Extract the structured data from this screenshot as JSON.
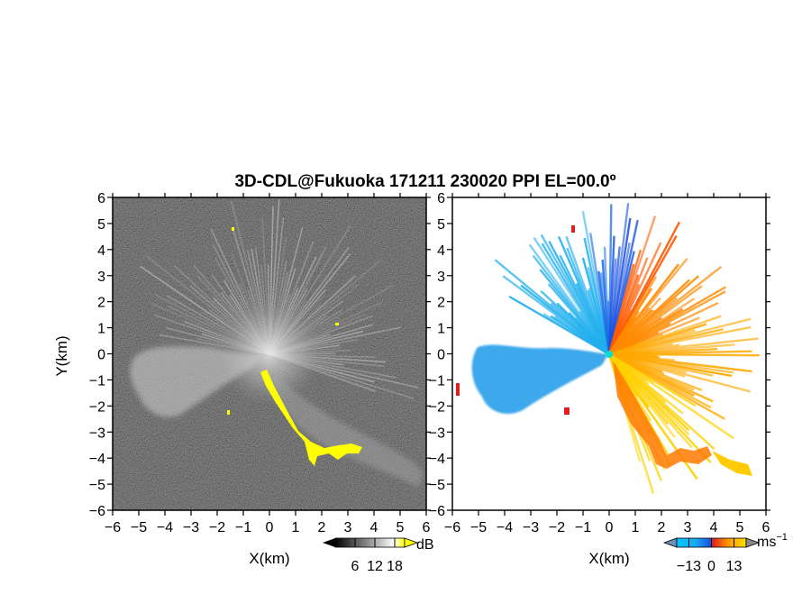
{
  "chart_data": [
    {
      "type": "heatmap",
      "panel": "reflectivity",
      "title": "3D-CDL@Fukuoka 171211 230020 PPI EL=00.0º",
      "xlabel": "X(km)",
      "ylabel": "Y(km)",
      "xlim": [
        -6,
        6
      ],
      "ylim": [
        -6,
        6
      ],
      "xticks": [
        -6,
        -5,
        -4,
        -3,
        -2,
        -1,
        0,
        1,
        2,
        3,
        4,
        5,
        6
      ],
      "yticks": [
        -6,
        -5,
        -4,
        -3,
        -2,
        -1,
        0,
        1,
        2,
        3,
        4,
        5,
        6
      ],
      "colorbar": {
        "label": "dB",
        "ticks": [
          6,
          12,
          18
        ],
        "range": [
          0,
          21
        ],
        "colors": [
          "#000000",
          "#ffffff",
          "#ffff00"
        ]
      }
    },
    {
      "type": "heatmap",
      "panel": "doppler-velocity",
      "xlabel": "X(km)",
      "xlim": [
        -6,
        6
      ],
      "ylim": [
        -6,
        6
      ],
      "xticks": [
        -6,
        -5,
        -4,
        -3,
        -2,
        -1,
        0,
        1,
        2,
        3,
        4,
        5,
        6
      ],
      "yticks": [
        -6,
        -5,
        -4,
        -3,
        -2,
        -1,
        0,
        1,
        2,
        3,
        4,
        5,
        6
      ],
      "colorbar": {
        "label": "ms",
        "label_exponent": "−1",
        "ticks": [
          -13,
          0,
          13
        ],
        "tick_labels": [
          "−13",
          "0",
          "13"
        ],
        "range": [
          -20,
          20
        ],
        "colors": [
          "#6b8fb5",
          "#00c8ff",
          "#1a52e0",
          "#e02020",
          "#ff9a00",
          "#ffe000",
          "#888888"
        ]
      }
    }
  ]
}
